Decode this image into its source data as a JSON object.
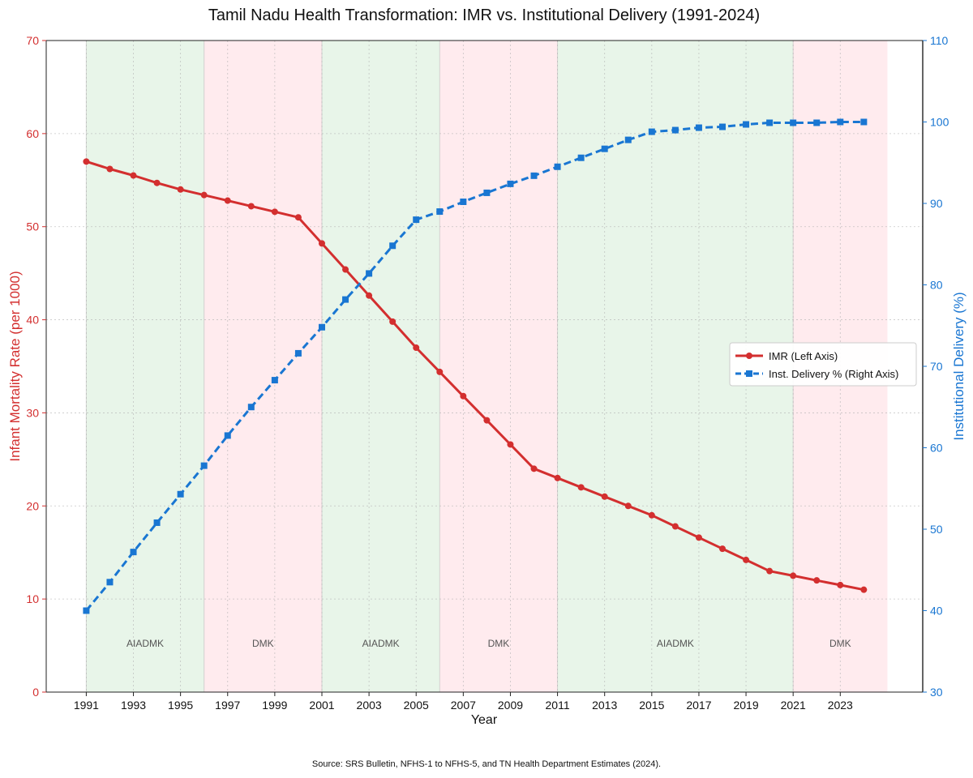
{
  "chart_data": {
    "type": "line",
    "title": "Tamil Nadu Health Transformation: IMR vs. Institutional Delivery (1991-2024)",
    "xlabel": "Year",
    "ylabel_left": "Infant Mortality Rate (per 1000)",
    "ylabel_right": "Institutional Delivery (%)",
    "source": "Source: SRS Bulletin, NFHS-1 to NFHS-5, and TN Health Department Estimates (2024).",
    "xlim": [
      1989.3,
      2026.5
    ],
    "ylim_left": [
      0,
      70
    ],
    "ylim_right": [
      30,
      110
    ],
    "x_ticks": [
      1991,
      1993,
      1995,
      1997,
      1999,
      2001,
      2003,
      2005,
      2007,
      2009,
      2011,
      2013,
      2015,
      2017,
      2019,
      2021,
      2023
    ],
    "y_ticks_left": [
      0,
      10,
      20,
      30,
      40,
      50,
      60,
      70
    ],
    "y_ticks_right": [
      30,
      40,
      50,
      60,
      70,
      80,
      90,
      100,
      110
    ],
    "grid": true,
    "legend_position": "center-right",
    "x": [
      1991,
      1992,
      1993,
      1994,
      1995,
      1996,
      1997,
      1998,
      1999,
      2000,
      2001,
      2002,
      2003,
      2004,
      2005,
      2006,
      2007,
      2008,
      2009,
      2010,
      2011,
      2012,
      2013,
      2014,
      2015,
      2016,
      2017,
      2018,
      2019,
      2020,
      2021,
      2022,
      2023,
      2024
    ],
    "series": [
      {
        "name": "IMR (Left Axis)",
        "axis": "left",
        "color": "#d32f2f",
        "marker": "circle",
        "line_style": "solid",
        "values": [
          57,
          56.2,
          55.5,
          54.7,
          54,
          53.4,
          52.8,
          52.2,
          51.6,
          51,
          48.2,
          45.4,
          42.6,
          39.8,
          37,
          34.4,
          31.8,
          29.2,
          26.6,
          24,
          23,
          22,
          21,
          20,
          19,
          17.8,
          16.6,
          15.4,
          14.2,
          13,
          12.5,
          12,
          11.5,
          11
        ]
      },
      {
        "name": "Inst. Delivery % (Right Axis)",
        "axis": "right",
        "color": "#1976d2",
        "marker": "square",
        "line_style": "dashed",
        "values": [
          40,
          43.5,
          47.2,
          50.8,
          54.3,
          57.8,
          61.5,
          65,
          68.3,
          71.6,
          74.8,
          78.2,
          81.4,
          84.8,
          88,
          89,
          90.2,
          91.3,
          92.4,
          93.4,
          94.5,
          95.6,
          96.7,
          97.8,
          98.8,
          99,
          99.3,
          99.4,
          99.7,
          99.9,
          99.9,
          99.9,
          100,
          100
        ]
      }
    ],
    "eras": [
      {
        "label": "AIADMK",
        "start": 1991,
        "end": 1996,
        "color": "#e8f5e9"
      },
      {
        "label": "DMK",
        "start": 1996,
        "end": 2001,
        "color": "#ffebee"
      },
      {
        "label": "AIADMK",
        "start": 2001,
        "end": 2006,
        "color": "#e8f5e9"
      },
      {
        "label": "DMK",
        "start": 2006,
        "end": 2011,
        "color": "#ffebee"
      },
      {
        "label": "AIADMK",
        "start": 2011,
        "end": 2021,
        "color": "#e8f5e9"
      },
      {
        "label": "DMK",
        "start": 2021,
        "end": 2025,
        "color": "#ffebee"
      }
    ],
    "colors": {
      "left_axis": "#d32f2f",
      "right_axis": "#1976d2"
    }
  }
}
